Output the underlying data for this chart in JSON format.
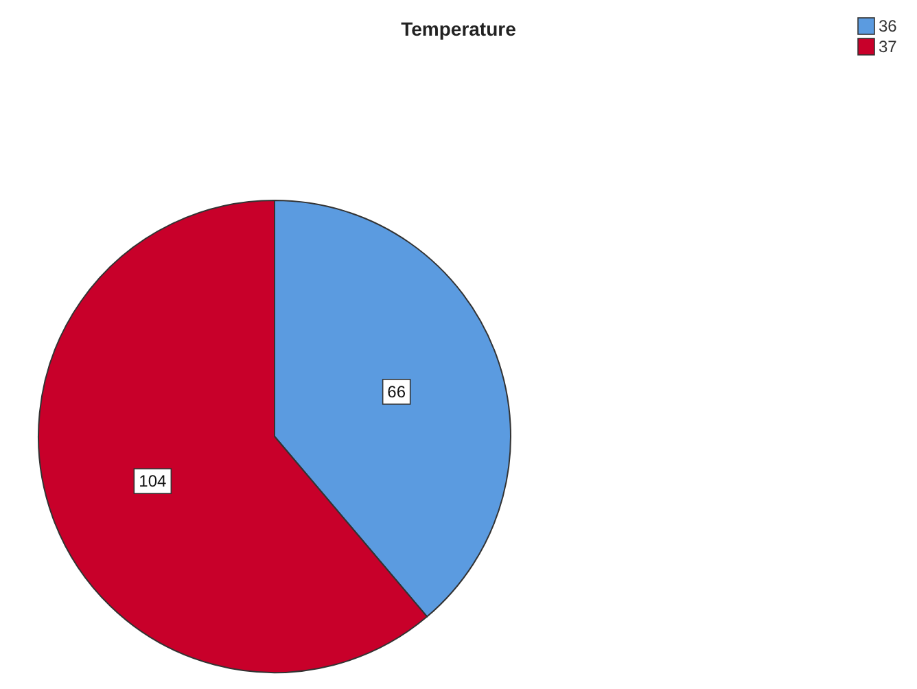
{
  "chart_data": {
    "type": "pie",
    "title": "Temperature",
    "categories": [
      "36",
      "37"
    ],
    "values": [
      66,
      104
    ],
    "colors": [
      "#5b9be0",
      "#c8002a"
    ],
    "data_labels": true,
    "legend": "top right"
  }
}
